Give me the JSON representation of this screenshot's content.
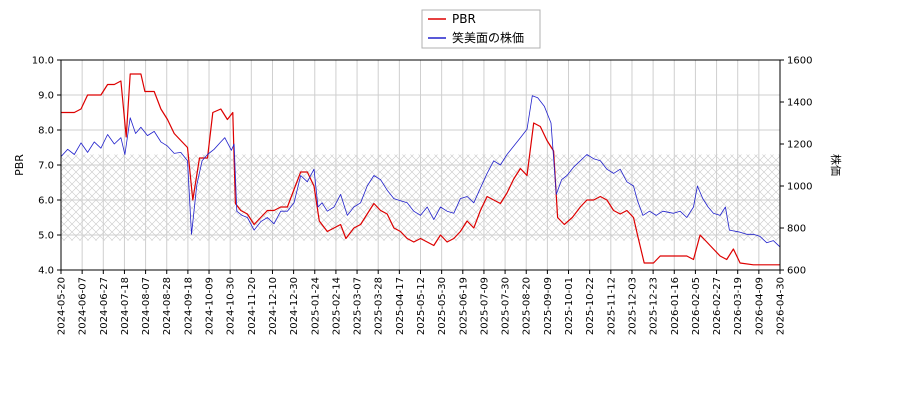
{
  "chart_data": {
    "type": "line",
    "title": "",
    "x_dates": [
      "2024-05-20",
      "2024-06-07",
      "2024-06-27",
      "2024-07-18",
      "2024-08-07",
      "2024-08-28",
      "2024-09-18",
      "2024-10-09",
      "2024-10-30",
      "2024-11-20",
      "2024-12-10",
      "2024-12-30",
      "2025-01-24",
      "2025-02-14",
      "2025-03-07",
      "2025-03-28",
      "2025-04-17",
      "2025-05-12",
      "2025-05-30",
      "2025-06-19",
      "2025-07-09",
      "2025-07-30",
      "2025-08-20",
      "2025-09-09",
      "2025-10-01",
      "2025-10-22",
      "2025-11-12",
      "2025-12-03",
      "2025-12-23",
      "2026-01-16",
      "2026-02-05",
      "2026-02-27",
      "2026-03-19",
      "2026-04-09",
      "2026-04-30"
    ],
    "ylabel_left": "PBR",
    "ylabel_right": "株価",
    "ylim_left": [
      4.0,
      10.0
    ],
    "ylim_right": [
      600,
      1600
    ],
    "yticks_left": [
      "4.0",
      "5.0",
      "6.0",
      "7.0",
      "8.0",
      "9.0",
      "10.0"
    ],
    "yticks_right": [
      "600",
      "800",
      "1000",
      "1200",
      "1400",
      "1600"
    ],
    "hatch_band_right": [
      740,
      1150
    ],
    "grid": true,
    "legend_position": "top-center",
    "legend": [
      {
        "label": "PBR",
        "color": "#dd0000"
      },
      {
        "label": "笑美面の株価",
        "color": "#2222cc"
      }
    ],
    "series": [
      {
        "name": "PBR",
        "axis": "left",
        "color": "#dd0000",
        "points": [
          [
            0,
            8.5
          ],
          [
            1,
            8.5
          ],
          [
            1.5,
            8.6
          ],
          [
            2,
            9.0
          ],
          [
            3,
            9.0
          ],
          [
            3.5,
            9.3
          ],
          [
            4,
            9.3
          ],
          [
            4.5,
            9.4
          ],
          [
            4.9,
            7.8
          ],
          [
            5.2,
            9.6
          ],
          [
            6,
            9.6
          ],
          [
            6.3,
            9.1
          ],
          [
            7,
            9.1
          ],
          [
            7.5,
            8.6
          ],
          [
            8,
            8.3
          ],
          [
            8.5,
            7.9
          ],
          [
            9,
            7.7
          ],
          [
            9.5,
            7.5
          ],
          [
            9.9,
            6.0
          ],
          [
            10.4,
            7.2
          ],
          [
            11,
            7.2
          ],
          [
            11.4,
            8.5
          ],
          [
            12,
            8.6
          ],
          [
            12.5,
            8.3
          ],
          [
            12.9,
            8.5
          ],
          [
            13.1,
            5.9
          ],
          [
            13.5,
            5.7
          ],
          [
            14,
            5.6
          ],
          [
            14.5,
            5.3
          ],
          [
            15,
            5.5
          ],
          [
            15.5,
            5.7
          ],
          [
            16,
            5.7
          ],
          [
            16.5,
            5.8
          ],
          [
            17,
            5.8
          ],
          [
            17.5,
            6.3
          ],
          [
            18,
            6.8
          ],
          [
            18.5,
            6.8
          ],
          [
            19,
            6.4
          ],
          [
            19.4,
            5.4
          ],
          [
            20,
            5.1
          ],
          [
            20.5,
            5.2
          ],
          [
            21,
            5.3
          ],
          [
            21.4,
            4.9
          ],
          [
            22,
            5.2
          ],
          [
            22.5,
            5.3
          ],
          [
            23,
            5.6
          ],
          [
            23.5,
            5.9
          ],
          [
            24,
            5.7
          ],
          [
            24.5,
            5.6
          ],
          [
            25,
            5.2
          ],
          [
            25.5,
            5.1
          ],
          [
            26,
            4.9
          ],
          [
            26.5,
            4.8
          ],
          [
            27,
            4.9
          ],
          [
            27.5,
            4.8
          ],
          [
            28,
            4.7
          ],
          [
            28.5,
            5.0
          ],
          [
            29,
            4.8
          ],
          [
            29.5,
            4.9
          ],
          [
            30,
            5.1
          ],
          [
            30.5,
            5.4
          ],
          [
            31,
            5.2
          ],
          [
            31.5,
            5.7
          ],
          [
            32,
            6.1
          ],
          [
            32.5,
            6.0
          ],
          [
            33,
            5.9
          ],
          [
            33.5,
            6.2
          ],
          [
            34,
            6.6
          ],
          [
            34.5,
            6.9
          ],
          [
            35,
            6.7
          ],
          [
            35.5,
            8.2
          ],
          [
            36,
            8.1
          ],
          [
            36.5,
            7.7
          ],
          [
            37,
            7.4
          ],
          [
            37.3,
            5.5
          ],
          [
            37.8,
            5.3
          ],
          [
            38.4,
            5.5
          ],
          [
            39,
            5.8
          ],
          [
            39.5,
            6.0
          ],
          [
            40,
            6.0
          ],
          [
            40.5,
            6.1
          ],
          [
            41,
            6.0
          ],
          [
            41.5,
            5.7
          ],
          [
            42,
            5.6
          ],
          [
            42.5,
            5.7
          ],
          [
            43,
            5.5
          ],
          [
            43.3,
            5.0
          ],
          [
            43.8,
            4.2
          ],
          [
            44.5,
            4.2
          ],
          [
            45,
            4.4
          ],
          [
            45.5,
            4.4
          ],
          [
            46,
            4.4
          ],
          [
            46.5,
            4.4
          ],
          [
            47,
            4.4
          ],
          [
            47.5,
            4.3
          ],
          [
            48,
            5.0
          ],
          [
            48.5,
            4.8
          ],
          [
            49,
            4.6
          ],
          [
            49.5,
            4.4
          ],
          [
            50,
            4.3
          ],
          [
            50.5,
            4.6
          ],
          [
            51,
            4.2
          ],
          [
            52,
            4.15
          ],
          [
            53,
            4.15
          ],
          [
            54,
            4.15
          ]
        ]
      },
      {
        "name": "笑美面の株価",
        "axis": "right",
        "color": "#2222cc",
        "points": [
          [
            0,
            1140
          ],
          [
            0.5,
            1175
          ],
          [
            1,
            1150
          ],
          [
            1.5,
            1205
          ],
          [
            2,
            1160
          ],
          [
            2.5,
            1210
          ],
          [
            3,
            1180
          ],
          [
            3.5,
            1245
          ],
          [
            4,
            1200
          ],
          [
            4.5,
            1230
          ],
          [
            4.8,
            1150
          ],
          [
            5.2,
            1325
          ],
          [
            5.6,
            1250
          ],
          [
            6,
            1280
          ],
          [
            6.5,
            1240
          ],
          [
            7,
            1260
          ],
          [
            7.5,
            1210
          ],
          [
            8,
            1190
          ],
          [
            8.5,
            1155
          ],
          [
            9,
            1160
          ],
          [
            9.5,
            1120
          ],
          [
            9.8,
            770
          ],
          [
            10.2,
            1005
          ],
          [
            10.6,
            1120
          ],
          [
            11,
            1150
          ],
          [
            11.5,
            1175
          ],
          [
            12,
            1210
          ],
          [
            12.3,
            1230
          ],
          [
            12.8,
            1170
          ],
          [
            13,
            1200
          ],
          [
            13.2,
            880
          ],
          [
            13.6,
            860
          ],
          [
            14,
            850
          ],
          [
            14.5,
            790
          ],
          [
            15,
            830
          ],
          [
            15.5,
            850
          ],
          [
            16,
            820
          ],
          [
            16.5,
            880
          ],
          [
            17,
            880
          ],
          [
            17.5,
            920
          ],
          [
            18,
            1050
          ],
          [
            18.5,
            1020
          ],
          [
            19,
            1080
          ],
          [
            19.3,
            900
          ],
          [
            19.6,
            920
          ],
          [
            20,
            880
          ],
          [
            20.5,
            900
          ],
          [
            21,
            960
          ],
          [
            21.5,
            860
          ],
          [
            22,
            900
          ],
          [
            22.5,
            920
          ],
          [
            23,
            1000
          ],
          [
            23.5,
            1050
          ],
          [
            24,
            1030
          ],
          [
            24.5,
            980
          ],
          [
            25,
            940
          ],
          [
            25.5,
            930
          ],
          [
            26,
            920
          ],
          [
            26.5,
            880
          ],
          [
            27,
            860
          ],
          [
            27.5,
            900
          ],
          [
            28,
            840
          ],
          [
            28.5,
            900
          ],
          [
            29,
            880
          ],
          [
            29.5,
            870
          ],
          [
            30,
            940
          ],
          [
            30.5,
            950
          ],
          [
            31,
            920
          ],
          [
            31.5,
            990
          ],
          [
            32,
            1060
          ],
          [
            32.5,
            1120
          ],
          [
            33,
            1100
          ],
          [
            33.5,
            1150
          ],
          [
            34,
            1190
          ],
          [
            34.5,
            1230
          ],
          [
            35,
            1270
          ],
          [
            35.4,
            1430
          ],
          [
            35.8,
            1420
          ],
          [
            36.3,
            1380
          ],
          [
            36.8,
            1300
          ],
          [
            37.2,
            960
          ],
          [
            37.6,
            1030
          ],
          [
            38,
            1050
          ],
          [
            38.5,
            1090
          ],
          [
            39,
            1120
          ],
          [
            39.5,
            1150
          ],
          [
            40,
            1130
          ],
          [
            40.5,
            1120
          ],
          [
            41,
            1080
          ],
          [
            41.5,
            1060
          ],
          [
            42,
            1080
          ],
          [
            42.5,
            1020
          ],
          [
            43,
            1000
          ],
          [
            43.3,
            930
          ],
          [
            43.7,
            860
          ],
          [
            44.2,
            880
          ],
          [
            44.7,
            860
          ],
          [
            45.2,
            880
          ],
          [
            46,
            870
          ],
          [
            46.5,
            880
          ],
          [
            47,
            850
          ],
          [
            47.5,
            900
          ],
          [
            47.8,
            1000
          ],
          [
            48.2,
            940
          ],
          [
            48.6,
            900
          ],
          [
            49,
            870
          ],
          [
            49.5,
            860
          ],
          [
            49.9,
            900
          ],
          [
            50.2,
            790
          ],
          [
            51,
            780
          ],
          [
            51.5,
            770
          ],
          [
            52,
            770
          ],
          [
            52.5,
            760
          ],
          [
            53,
            730
          ],
          [
            53.5,
            740
          ],
          [
            54,
            710
          ]
        ]
      }
    ]
  }
}
